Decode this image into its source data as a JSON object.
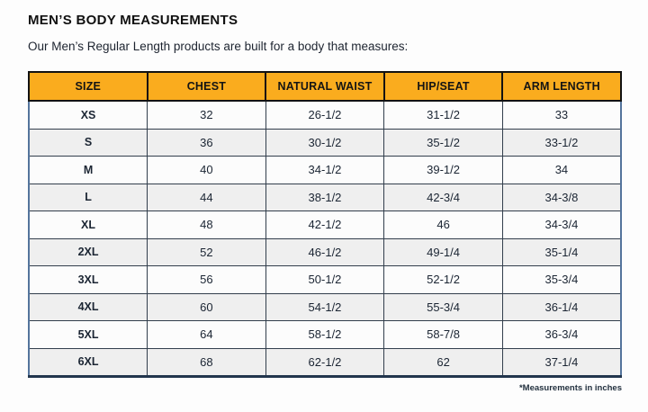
{
  "page": {
    "title": "MEN’S BODY MEASUREMENTS",
    "subtitle": "Our Men’s Regular Length products are built for a body that measures:",
    "footnote": "*Measurements in inches"
  },
  "table": {
    "columns": [
      "SIZE",
      "CHEST",
      "NATURAL WAIST",
      "HIP/SEAT",
      "ARM LENGTH"
    ],
    "rows": [
      {
        "size": "XS",
        "chest": "32",
        "natural_waist": "26-1/2",
        "hip_seat": "31-1/2",
        "arm_length": "33"
      },
      {
        "size": "S",
        "chest": "36",
        "natural_waist": "30-1/2",
        "hip_seat": "35-1/2",
        "arm_length": "33-1/2"
      },
      {
        "size": "M",
        "chest": "40",
        "natural_waist": "34-1/2",
        "hip_seat": "39-1/2",
        "arm_length": "34"
      },
      {
        "size": "L",
        "chest": "44",
        "natural_waist": "38-1/2",
        "hip_seat": "42-3/4",
        "arm_length": "34-3/8"
      },
      {
        "size": "XL",
        "chest": "48",
        "natural_waist": "42-1/2",
        "hip_seat": "46",
        "arm_length": "34-3/4"
      },
      {
        "size": "2XL",
        "chest": "52",
        "natural_waist": "46-1/2",
        "hip_seat": "49-1/4",
        "arm_length": "35-1/4"
      },
      {
        "size": "3XL",
        "chest": "56",
        "natural_waist": "50-1/2",
        "hip_seat": "52-1/2",
        "arm_length": "35-3/4"
      },
      {
        "size": "4XL",
        "chest": "60",
        "natural_waist": "54-1/2",
        "hip_seat": "55-3/4",
        "arm_length": "36-1/4"
      },
      {
        "size": "5XL",
        "chest": "64",
        "natural_waist": "58-1/2",
        "hip_seat": "58-7/8",
        "arm_length": "36-3/4"
      },
      {
        "size": "6XL",
        "chest": "68",
        "natural_waist": "62-1/2",
        "hip_seat": "62",
        "arm_length": "37-1/4"
      }
    ]
  },
  "colors": {
    "header_bg": "#FAAC1E",
    "header_border": "#121212",
    "grid_border": "#323E4C",
    "outer_border_blue": "#54749C",
    "bottom_border": "#22364D",
    "row_alt_bg": "#EFEFEF",
    "cell_text": "#1B2533"
  }
}
